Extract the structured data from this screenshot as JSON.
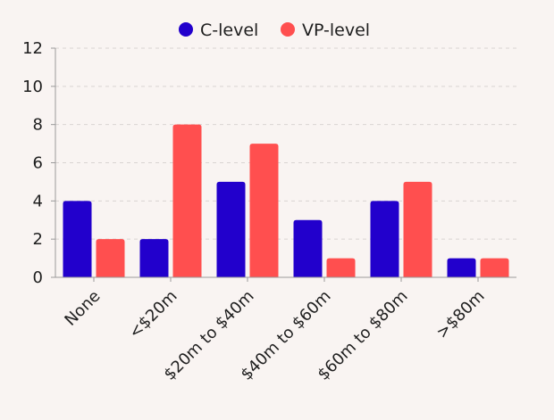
{
  "chart_data": {
    "type": "bar",
    "categories": [
      "None",
      "<$20m",
      "$20m to $40m",
      "$40m to $60m",
      "$60m to $80m",
      ">$80m"
    ],
    "series": [
      {
        "name": "C-level",
        "values": [
          4,
          2,
          5,
          3,
          4,
          1
        ],
        "color": "#2200cc"
      },
      {
        "name": "VP-level",
        "values": [
          2,
          8,
          7,
          1,
          5,
          1
        ],
        "color": "#ff4f4f"
      }
    ],
    "yticks": [
      "0",
      "2",
      "4",
      "6",
      "8",
      "10",
      "12"
    ],
    "ylim": [
      0,
      12
    ],
    "grid": true,
    "legend_position": "top-center",
    "title": "",
    "xlabel": "",
    "ylabel": ""
  }
}
